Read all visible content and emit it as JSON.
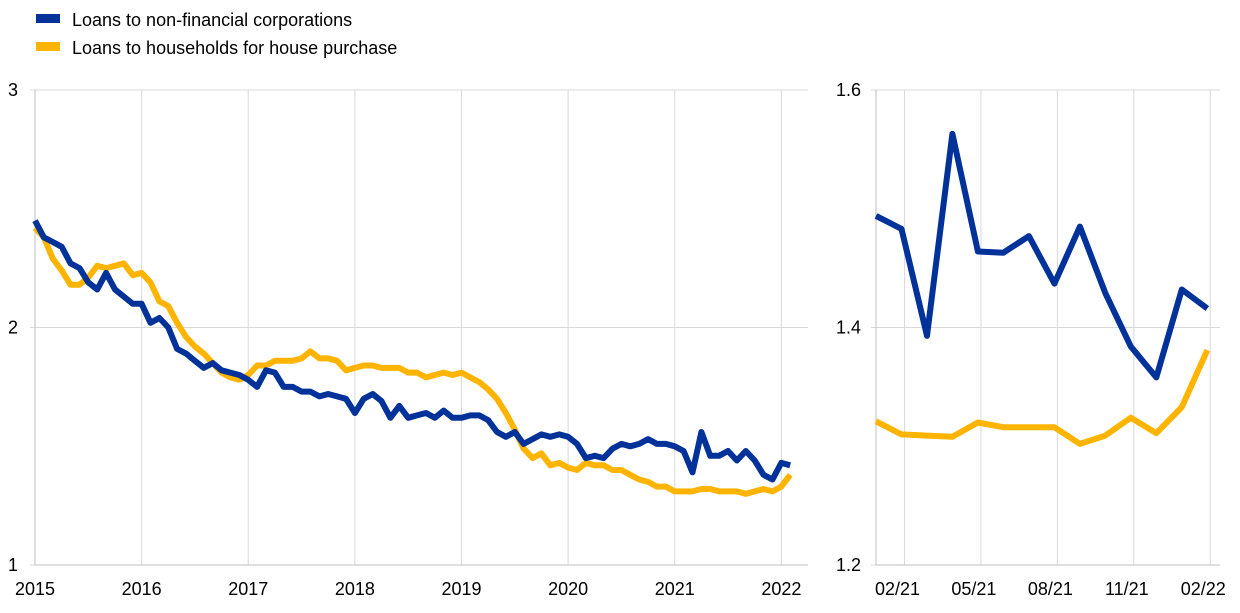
{
  "legend": {
    "items": [
      {
        "label": "Loans to non-financial corporations",
        "color": "#003299"
      },
      {
        "label": "Loans to households for house purchase",
        "color": "#FFB400"
      }
    ]
  },
  "chart_data": [
    {
      "type": "line",
      "x_tick_labels": [
        "2015",
        "2016",
        "2017",
        "2018",
        "2019",
        "2020",
        "2021",
        "2022"
      ],
      "y_tick_labels": [
        "1",
        "2",
        "3"
      ],
      "ylim": [
        1,
        3
      ],
      "xlim": [
        2015.0,
        2022.25
      ],
      "grid": "vertical",
      "legend_position": "top-left",
      "series": [
        {
          "name": "Loans to non-financial corporations",
          "color": "#003299",
          "x": [
            2015.0,
            2015.083,
            2015.167,
            2015.25,
            2015.333,
            2015.417,
            2015.5,
            2015.583,
            2015.667,
            2015.75,
            2015.833,
            2015.917,
            2016.0,
            2016.083,
            2016.167,
            2016.25,
            2016.333,
            2016.417,
            2016.5,
            2016.583,
            2016.667,
            2016.75,
            2016.833,
            2016.917,
            2017.0,
            2017.083,
            2017.167,
            2017.25,
            2017.333,
            2017.417,
            2017.5,
            2017.583,
            2017.667,
            2017.75,
            2017.833,
            2017.917,
            2018.0,
            2018.083,
            2018.167,
            2018.25,
            2018.333,
            2018.417,
            2018.5,
            2018.583,
            2018.667,
            2018.75,
            2018.833,
            2018.917,
            2019.0,
            2019.083,
            2019.167,
            2019.25,
            2019.333,
            2019.417,
            2019.5,
            2019.583,
            2019.667,
            2019.75,
            2019.833,
            2019.917,
            2020.0,
            2020.083,
            2020.167,
            2020.25,
            2020.333,
            2020.417,
            2020.5,
            2020.583,
            2020.667,
            2020.75,
            2020.833,
            2020.917,
            2021.0,
            2021.083,
            2021.167,
            2021.25,
            2021.333,
            2021.417,
            2021.5,
            2021.583,
            2021.667,
            2021.75,
            2021.833,
            2021.917,
            2022.0,
            2022.083
          ],
          "values": [
            2.45,
            2.38,
            2.36,
            2.34,
            2.27,
            2.25,
            2.19,
            2.16,
            2.23,
            2.16,
            2.13,
            2.1,
            2.1,
            2.02,
            2.04,
            2.0,
            1.91,
            1.89,
            1.86,
            1.83,
            1.85,
            1.82,
            1.81,
            1.8,
            1.78,
            1.75,
            1.82,
            1.81,
            1.75,
            1.75,
            1.73,
            1.73,
            1.71,
            1.72,
            1.71,
            1.7,
            1.64,
            1.7,
            1.72,
            1.69,
            1.62,
            1.67,
            1.62,
            1.63,
            1.64,
            1.62,
            1.65,
            1.62,
            1.62,
            1.63,
            1.63,
            1.61,
            1.56,
            1.54,
            1.56,
            1.51,
            1.53,
            1.55,
            1.54,
            1.55,
            1.54,
            1.51,
            1.45,
            1.46,
            1.45,
            1.49,
            1.51,
            1.5,
            1.51,
            1.53,
            1.51,
            1.51,
            1.5,
            1.48,
            1.39,
            1.56,
            1.46,
            1.46,
            1.48,
            1.44,
            1.48,
            1.44,
            1.38,
            1.36,
            1.43,
            1.42
          ]
        },
        {
          "name": "Loans to households for house purchase",
          "color": "#FFB400",
          "x": [
            2015.0,
            2015.083,
            2015.167,
            2015.25,
            2015.333,
            2015.417,
            2015.5,
            2015.583,
            2015.667,
            2015.75,
            2015.833,
            2015.917,
            2016.0,
            2016.083,
            2016.167,
            2016.25,
            2016.333,
            2016.417,
            2016.5,
            2016.583,
            2016.667,
            2016.75,
            2016.833,
            2016.917,
            2017.0,
            2017.083,
            2017.167,
            2017.25,
            2017.333,
            2017.417,
            2017.5,
            2017.583,
            2017.667,
            2017.75,
            2017.833,
            2017.917,
            2018.0,
            2018.083,
            2018.167,
            2018.25,
            2018.333,
            2018.417,
            2018.5,
            2018.583,
            2018.667,
            2018.75,
            2018.833,
            2018.917,
            2019.0,
            2019.083,
            2019.167,
            2019.25,
            2019.333,
            2019.417,
            2019.5,
            2019.583,
            2019.667,
            2019.75,
            2019.833,
            2019.917,
            2020.0,
            2020.083,
            2020.167,
            2020.25,
            2020.333,
            2020.417,
            2020.5,
            2020.583,
            2020.667,
            2020.75,
            2020.833,
            2020.917,
            2021.0,
            2021.083,
            2021.167,
            2021.25,
            2021.333,
            2021.417,
            2021.5,
            2021.583,
            2021.667,
            2021.75,
            2021.833,
            2021.917,
            2022.0,
            2022.083
          ],
          "values": [
            2.42,
            2.38,
            2.29,
            2.24,
            2.18,
            2.18,
            2.21,
            2.26,
            2.25,
            2.26,
            2.27,
            2.22,
            2.23,
            2.19,
            2.11,
            2.09,
            2.02,
            1.96,
            1.92,
            1.89,
            1.85,
            1.81,
            1.79,
            1.78,
            1.8,
            1.84,
            1.84,
            1.86,
            1.86,
            1.86,
            1.87,
            1.9,
            1.87,
            1.87,
            1.86,
            1.82,
            1.83,
            1.84,
            1.84,
            1.83,
            1.83,
            1.83,
            1.81,
            1.81,
            1.79,
            1.8,
            1.81,
            1.8,
            1.81,
            1.79,
            1.77,
            1.74,
            1.7,
            1.64,
            1.57,
            1.49,
            1.45,
            1.47,
            1.42,
            1.43,
            1.41,
            1.4,
            1.43,
            1.42,
            1.42,
            1.4,
            1.4,
            1.38,
            1.36,
            1.35,
            1.33,
            1.33,
            1.31,
            1.31,
            1.31,
            1.32,
            1.32,
            1.31,
            1.31,
            1.31,
            1.3,
            1.31,
            1.32,
            1.31,
            1.33,
            1.38
          ]
        }
      ]
    },
    {
      "type": "line",
      "x_tick_labels": [
        "02/21",
        "05/21",
        "08/21",
        "11/21",
        "02/22"
      ],
      "y_tick_labels": [
        "1.2",
        "1.4",
        "1.6"
      ],
      "ylim": [
        1.2,
        1.6
      ],
      "grid": "vertical",
      "series": [
        {
          "name": "Loans to non-financial corporations",
          "color": "#003299",
          "x": [
            "01/21",
            "02/21",
            "03/21",
            "04/21",
            "05/21",
            "06/21",
            "07/21",
            "08/21",
            "09/21",
            "10/21",
            "11/21",
            "12/21",
            "01/22",
            "02/22"
          ],
          "values": [
            1.494,
            1.483,
            1.393,
            1.563,
            1.464,
            1.463,
            1.477,
            1.437,
            1.485,
            1.429,
            1.384,
            1.358,
            1.432,
            1.416
          ]
        },
        {
          "name": "Loans to households for house purchase",
          "color": "#FFB400",
          "x": [
            "01/21",
            "02/21",
            "03/21",
            "04/21",
            "05/21",
            "06/21",
            "07/21",
            "08/21",
            "09/21",
            "10/21",
            "11/21",
            "12/21",
            "01/22",
            "02/22"
          ],
          "values": [
            1.321,
            1.31,
            1.309,
            1.308,
            1.32,
            1.316,
            1.316,
            1.316,
            1.302,
            1.309,
            1.324,
            1.311,
            1.333,
            1.381
          ]
        }
      ]
    }
  ]
}
